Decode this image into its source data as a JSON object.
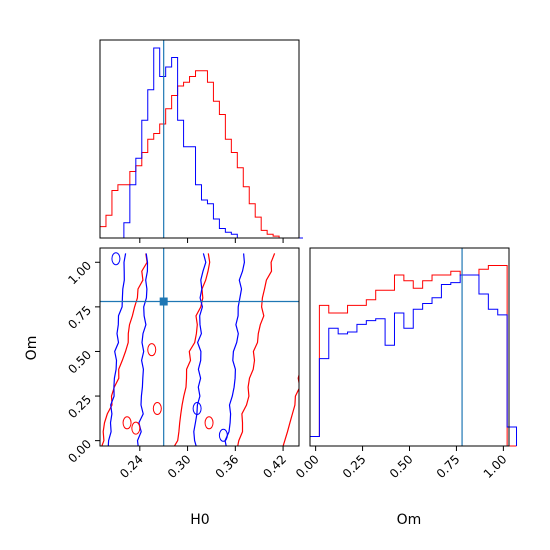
{
  "chart_data": {
    "type": "corner",
    "colors": {
      "series_a": "#ff0000",
      "series_b": "#0000ff",
      "truth": "#1f77b4"
    },
    "truth": {
      "H0": 0.27,
      "Om": 0.78
    },
    "panels": {
      "h0_hist": {
        "type": "histogram",
        "xlim": [
          0.19,
          0.44
        ],
        "ylim": [
          0,
          1
        ],
        "bin_width": 0.0075,
        "bin_start": 0.19,
        "series": [
          {
            "color": "#ff0000",
            "values": [
              0.06,
              0.12,
              0.25,
              0.28,
              0.28,
              0.35,
              0.38,
              0.45,
              0.52,
              0.55,
              0.6,
              0.68,
              0.75,
              0.8,
              0.82,
              0.85,
              0.88,
              0.88,
              0.82,
              0.72,
              0.65,
              0.52,
              0.45,
              0.37,
              0.27,
              0.18,
              0.11,
              0.04,
              0.02,
              0.01,
              0.0,
              0.0,
              0.0,
              0.0
            ]
          },
          {
            "color": "#0000ff",
            "values": [
              0.0,
              0.0,
              0.0,
              0.0,
              0.08,
              0.28,
              0.42,
              0.62,
              0.78,
              1.0,
              0.85,
              0.9,
              0.95,
              0.62,
              0.48,
              0.48,
              0.28,
              0.2,
              0.18,
              0.1,
              0.05,
              0.03,
              0.02,
              0.0,
              0.0,
              0.0,
              0.0,
              0.0,
              0.0,
              0.0,
              0.0,
              0.0,
              0.0,
              0.0
            ]
          }
        ]
      },
      "om_hist": {
        "type": "histogram",
        "xlim": [
          -0.03,
          1.03
        ],
        "ylim": [
          0,
          1
        ],
        "bin_width": 0.05,
        "bin_start": -0.03,
        "series": [
          {
            "color": "#ff0000",
            "values": [
              0.05,
              0.74,
              0.7,
              0.7,
              0.74,
              0.74,
              0.77,
              0.82,
              0.82,
              0.9,
              0.87,
              0.83,
              0.87,
              0.9,
              0.9,
              0.92,
              0.9,
              0.9,
              0.93,
              0.95,
              0.95,
              0.0
            ]
          },
          {
            "color": "#0000ff",
            "values": [
              0.05,
              0.46,
              0.62,
              0.59,
              0.6,
              0.64,
              0.66,
              0.67,
              0.53,
              0.7,
              0.62,
              0.72,
              0.75,
              0.78,
              0.85,
              0.86,
              0.9,
              0.9,
              0.8,
              0.72,
              0.69,
              0.1
            ]
          }
        ]
      },
      "joint": {
        "type": "contour",
        "xlim": [
          0.19,
          0.44
        ],
        "ylim": [
          -0.03,
          1.08
        ]
      }
    },
    "x_axis_h0": {
      "label": "H0",
      "ticks": [
        0.24,
        0.3,
        0.36,
        0.42
      ],
      "tick_labels": [
        "0.24",
        "0.30",
        "0.36",
        "0.42"
      ]
    },
    "y_axis_om": {
      "label": "Om",
      "ticks": [
        0.0,
        0.25,
        0.5,
        0.75,
        1.0
      ],
      "tick_labels": [
        "0.00",
        "0.25",
        "0.50",
        "0.75",
        "1.00"
      ]
    },
    "x_axis_om": {
      "label": "Om",
      "ticks": [
        0.0,
        0.25,
        0.5,
        0.75,
        1.0
      ],
      "tick_labels": [
        "0.00",
        "0.25",
        "0.50",
        "0.75",
        "1.00"
      ]
    }
  }
}
